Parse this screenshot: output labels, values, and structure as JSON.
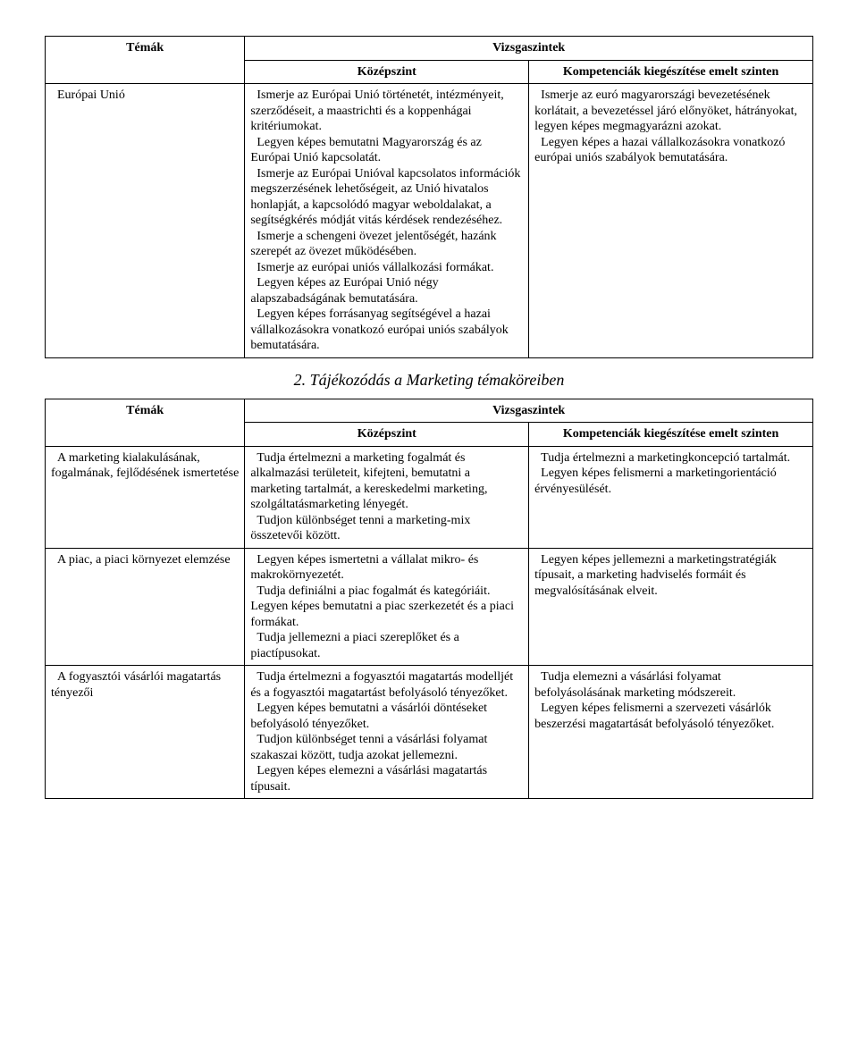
{
  "table1": {
    "headers": {
      "topics": "Témák",
      "levels": "Vizsgaszintek",
      "mid": "Középszint",
      "right": "Kompetenciák kiegészítése emelt szinten"
    },
    "rows": [
      {
        "topic": "  Európai Unió",
        "mid": "  Ismerje az Európai Unió történetét, intézményeit, szerződéseit, a maastrichti és a koppenhágai kritériumokat.\n  Legyen képes bemutatni Magyarország és az Európai Unió kapcsolatát.\n  Ismerje az Európai Unióval kapcsolatos információk megszerzésének lehetőségeit, az Unió hivatalos honlapját, a kapcsolódó magyar weboldalakat, a segítségkérés módját vitás kérdések rendezéséhez.\n  Ismerje a schengeni övezet jelentőségét, hazánk szerepét az övezet működésében.\n  Ismerje az európai uniós vállalkozási formákat.\n  Legyen képes az Európai Unió négy alapszabadságának bemutatására.\n  Legyen képes forrásanyag segítségével a hazai vállalkozásokra vonatkozó európai uniós szabályok bemutatására.",
        "right": "  Ismerje az euró magyarországi bevezetésének korlátait, a bevezetéssel járó előnyöket, hátrányokat, legyen képes megmagyarázni azokat.\n  Legyen képes a hazai vállalkozásokra vonatkozó európai uniós szabályok bemutatására."
      }
    ]
  },
  "section2": {
    "heading": "2. Tájékozódás a Marketing témaköreiben"
  },
  "table2": {
    "headers": {
      "topics": "Témák",
      "levels": "Vizsgaszintek",
      "mid": "Középszint",
      "right": "Kompetenciák kiegészítése emelt szinten"
    },
    "rows": [
      {
        "topic": "  A marketing kialakulásának, fogalmának, fejlődésének ismertetése",
        "mid": "  Tudja értelmezni a marketing fogalmát és alkalmazási területeit, kifejteni, bemutatni a marketing tartalmát, a kereskedelmi marketing, szolgáltatásmarketing lényegét.\n  Tudjon különbséget tenni a marketing-mix összetevői között.",
        "right": "  Tudja értelmezni a marketingkoncepció tartalmát.\n  Legyen képes felismerni a marketingorientáció érvényesülését."
      },
      {
        "topic": "  A piac, a piaci környezet elemzése",
        "mid": "  Legyen képes ismertetni a vállalat mikro- és makrokörnyezetét.\n  Tudja definiálni a piac fogalmát és kategóriáit. Legyen képes bemutatni a piac szerkezetét és a piaci formákat.\n  Tudja jellemezni a piaci szereplőket és a piactípusokat.",
        "right": "  Legyen képes jellemezni a marketingstratégiák típusait, a marketing hadviselés formáit és megvalósításának elveit."
      },
      {
        "topic": "  A fogyasztói vásárlói magatartás tényezői",
        "mid": "  Tudja értelmezni a fogyasztói magatartás modelljét és a fogyasztói magatartást befolyásoló tényezőket.\n  Legyen képes bemutatni a vásárlói döntéseket befolyásoló tényezőket.\n  Tudjon különbséget tenni a vásárlási folyamat szakaszai között, tudja azokat jellemezni.\n  Legyen képes elemezni a vásárlási magatartás típusait.",
        "right": "  Tudja elemezni a vásárlási folyamat befolyásolásának marketing módszereit.\n  Legyen képes felismerni a szervezeti vásárlók beszerzési magatartását befolyásoló tényezőket."
      }
    ]
  }
}
